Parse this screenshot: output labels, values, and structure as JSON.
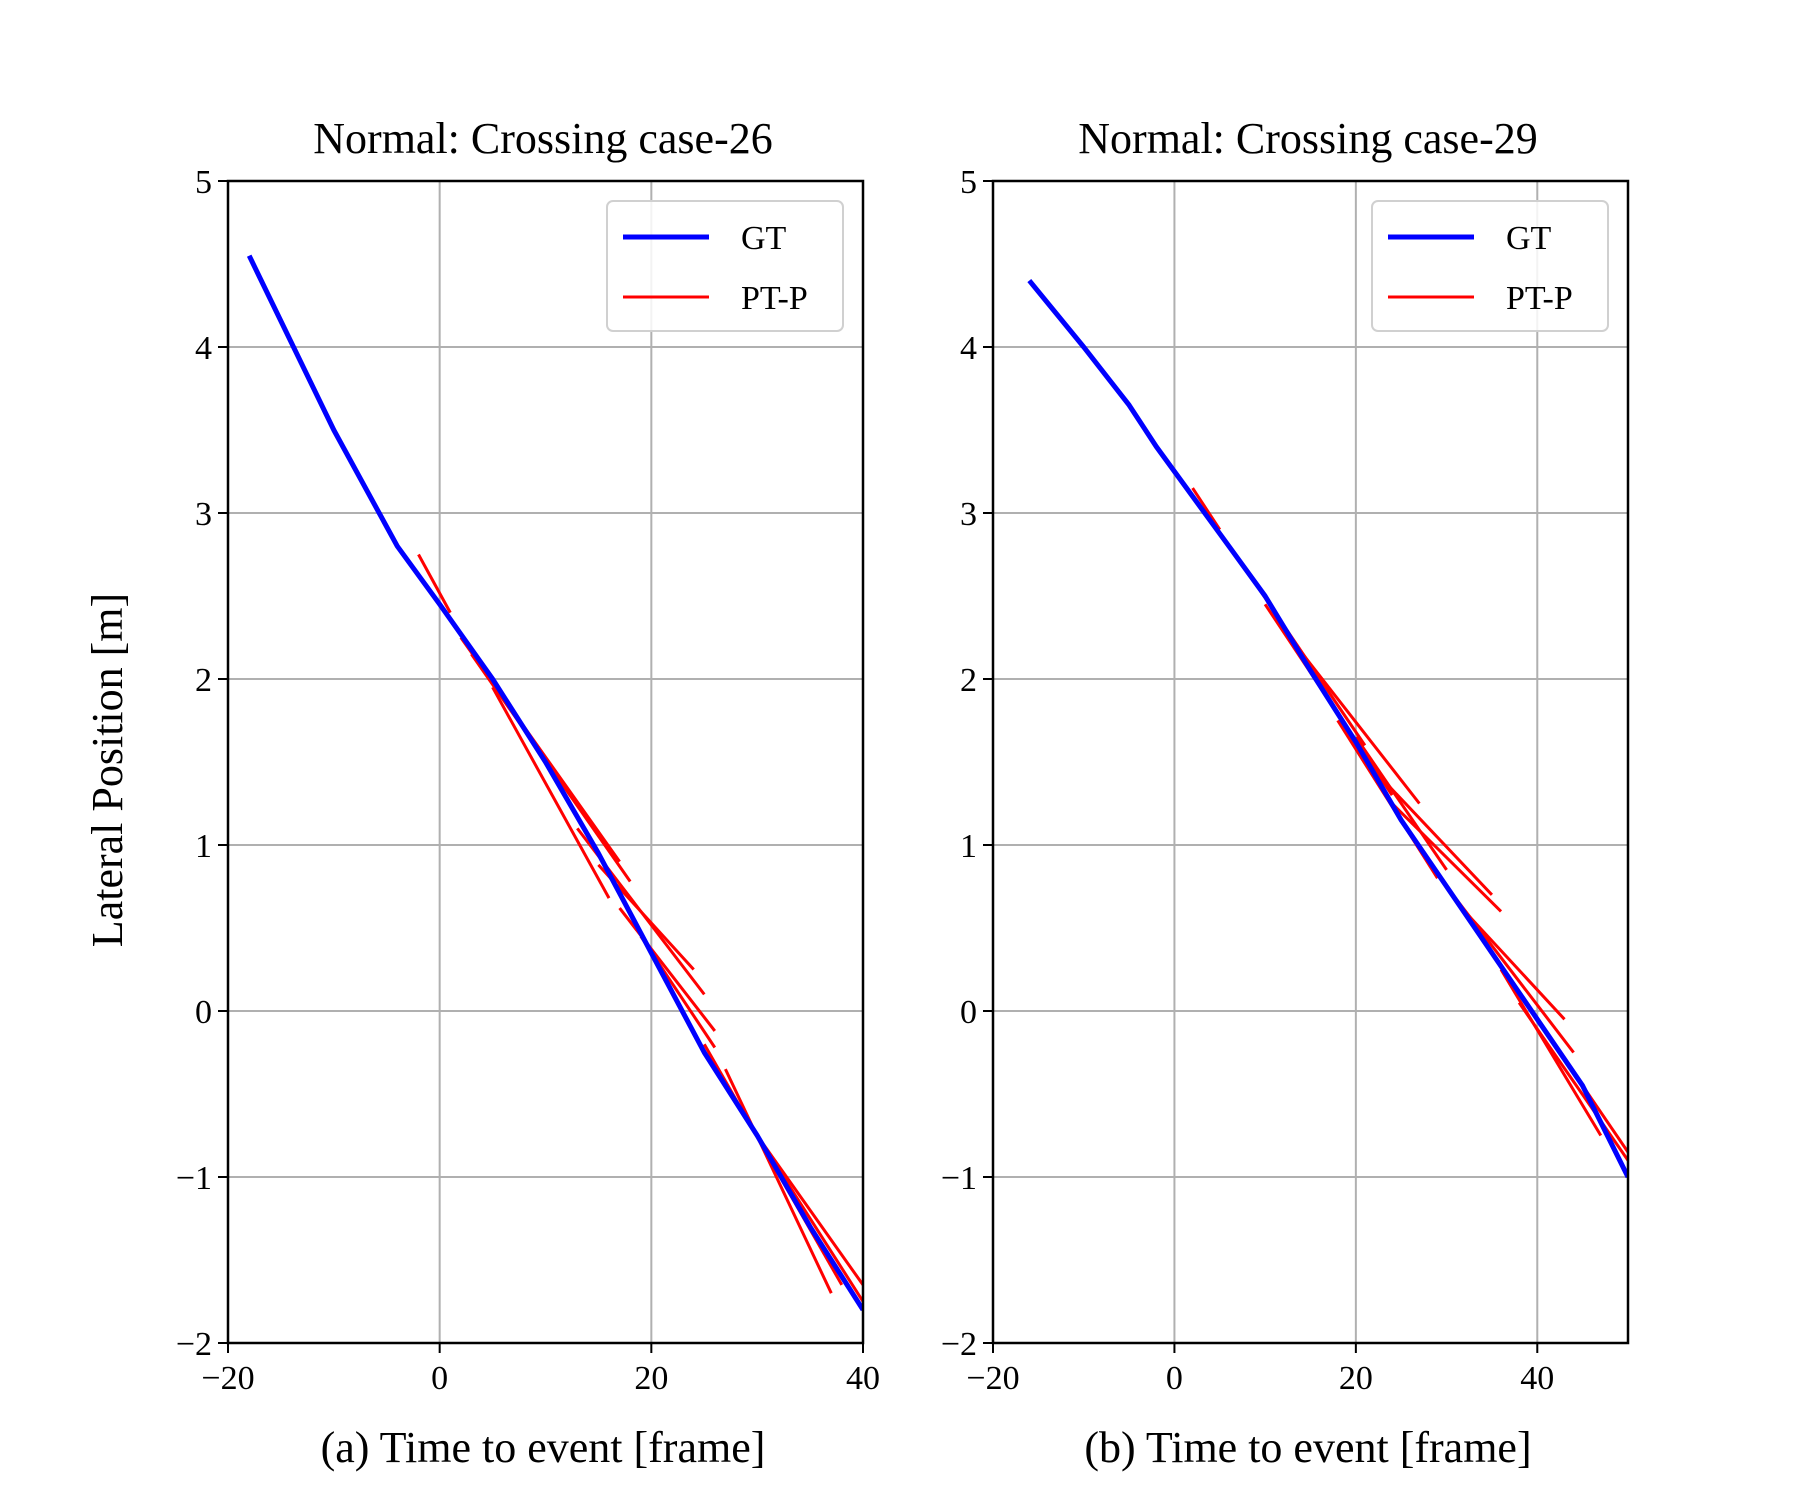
{
  "figure": {
    "ylabel": "Lateral Position [m]"
  },
  "legend_entries": [
    {
      "name": "GT",
      "color": "#0000ff",
      "width": "thick"
    },
    {
      "name": "PT-P",
      "color": "#ff0000",
      "width": "thin"
    }
  ],
  "chart_data": [
    {
      "type": "line",
      "title": "Normal: Crossing case-26",
      "xlabel": "(a) Time to event [frame]",
      "ylabel": "Lateral Position [m]",
      "xlim": [
        -20,
        40
      ],
      "ylim": [
        -2,
        5
      ],
      "xticks": [
        -20,
        0,
        20,
        40
      ],
      "xtick_labels": [
        "−20",
        "0",
        "20",
        "40"
      ],
      "yticks": [
        -2,
        -1,
        0,
        1,
        2,
        3,
        4,
        5
      ],
      "ytick_labels": [
        "−2",
        "−1",
        "0",
        "1",
        "2",
        "3",
        "4",
        "5"
      ],
      "grid": true,
      "legend_position": "top-right",
      "series": [
        {
          "name": "GT",
          "color": "#0000ff",
          "x": [
            -18,
            -10,
            -4,
            0,
            5,
            10,
            15,
            20,
            25,
            30,
            35,
            40
          ],
          "y": [
            4.55,
            3.5,
            2.8,
            2.45,
            2.0,
            1.5,
            0.95,
            0.35,
            -0.25,
            -0.75,
            -1.3,
            -1.8
          ]
        },
        {
          "name": "PT-P",
          "color": "#ff0000",
          "x": [
            -2,
            1
          ],
          "y": [
            2.75,
            2.4
          ]
        },
        {
          "name": "PT-P",
          "color": "#ff0000",
          "x": [
            2,
            17
          ],
          "y": [
            2.25,
            0.9
          ]
        },
        {
          "name": "PT-P",
          "color": "#ff0000",
          "x": [
            3,
            18
          ],
          "y": [
            2.15,
            0.78
          ]
        },
        {
          "name": "PT-P",
          "color": "#ff0000",
          "x": [
            5,
            16
          ],
          "y": [
            1.95,
            0.68
          ]
        },
        {
          "name": "PT-P",
          "color": "#ff0000",
          "x": [
            13,
            25
          ],
          "y": [
            1.1,
            0.1
          ]
        },
        {
          "name": "PT-P",
          "color": "#ff0000",
          "x": [
            15,
            24
          ],
          "y": [
            0.88,
            0.25
          ]
        },
        {
          "name": "PT-P",
          "color": "#ff0000",
          "x": [
            17,
            26
          ],
          "y": [
            0.62,
            -0.12
          ]
        },
        {
          "name": "PT-P",
          "color": "#ff0000",
          "x": [
            19,
            26
          ],
          "y": [
            0.45,
            -0.22
          ]
        },
        {
          "name": "PT-P",
          "color": "#ff0000",
          "x": [
            25,
            38
          ],
          "y": [
            -0.2,
            -1.65
          ]
        },
        {
          "name": "PT-P",
          "color": "#ff0000",
          "x": [
            27,
            37
          ],
          "y": [
            -0.35,
            -1.7
          ]
        },
        {
          "name": "PT-P",
          "color": "#ff0000",
          "x": [
            28,
            40
          ],
          "y": [
            -0.55,
            -1.75
          ]
        },
        {
          "name": "PT-P",
          "color": "#ff0000",
          "x": [
            30,
            40
          ],
          "y": [
            -0.75,
            -1.65
          ]
        }
      ]
    },
    {
      "type": "line",
      "title": "Normal: Crossing case-29",
      "xlabel": "(b) Time to event [frame]",
      "ylabel": "",
      "xlim": [
        -20,
        50
      ],
      "ylim": [
        -2,
        5
      ],
      "xticks": [
        -20,
        0,
        20,
        40
      ],
      "xtick_labels": [
        "−20",
        "0",
        "20",
        "40"
      ],
      "yticks": [
        -2,
        -1,
        0,
        1,
        2,
        3,
        4,
        5
      ],
      "ytick_labels": [
        "−2",
        "−1",
        "0",
        "1",
        "2",
        "3",
        "4",
        "5"
      ],
      "grid": true,
      "legend_position": "top-right",
      "series": [
        {
          "name": "GT",
          "color": "#0000ff",
          "x": [
            -16,
            -10,
            -5,
            -2,
            2,
            6,
            10,
            15,
            20,
            25,
            30,
            35,
            40,
            45,
            50
          ],
          "y": [
            4.4,
            4.0,
            3.65,
            3.4,
            3.1,
            2.8,
            2.5,
            2.05,
            1.62,
            1.15,
            0.75,
            0.35,
            -0.05,
            -0.45,
            -1.0
          ]
        },
        {
          "name": "PT-P",
          "color": "#ff0000",
          "x": [
            2,
            5
          ],
          "y": [
            3.15,
            2.9
          ]
        },
        {
          "name": "PT-P",
          "color": "#ff0000",
          "x": [
            8,
            21
          ],
          "y": [
            2.65,
            1.6
          ]
        },
        {
          "name": "PT-P",
          "color": "#ff0000",
          "x": [
            10,
            24
          ],
          "y": [
            2.45,
            1.3
          ]
        },
        {
          "name": "PT-P",
          "color": "#ff0000",
          "x": [
            12,
            27
          ],
          "y": [
            2.3,
            1.25
          ]
        },
        {
          "name": "PT-P",
          "color": "#ff0000",
          "x": [
            18,
            29
          ],
          "y": [
            1.75,
            0.8
          ]
        },
        {
          "name": "PT-P",
          "color": "#ff0000",
          "x": [
            20,
            30
          ],
          "y": [
            1.65,
            0.85
          ]
        },
        {
          "name": "PT-P",
          "color": "#ff0000",
          "x": [
            22,
            35
          ],
          "y": [
            1.45,
            0.7
          ]
        },
        {
          "name": "PT-P",
          "color": "#ff0000",
          "x": [
            24,
            36
          ],
          "y": [
            1.25,
            0.6
          ]
        },
        {
          "name": "PT-P",
          "color": "#ff0000",
          "x": [
            30,
            44
          ],
          "y": [
            0.75,
            -0.25
          ]
        },
        {
          "name": "PT-P",
          "color": "#ff0000",
          "x": [
            32,
            43
          ],
          "y": [
            0.6,
            -0.05
          ]
        },
        {
          "name": "PT-P",
          "color": "#ff0000",
          "x": [
            36,
            47
          ],
          "y": [
            0.25,
            -0.75
          ]
        },
        {
          "name": "PT-P",
          "color": "#ff0000",
          "x": [
            38,
            50
          ],
          "y": [
            0.05,
            -0.9
          ]
        },
        {
          "name": "PT-P",
          "color": "#ff0000",
          "x": [
            40,
            50
          ],
          "y": [
            -0.05,
            -0.85
          ]
        }
      ]
    }
  ]
}
